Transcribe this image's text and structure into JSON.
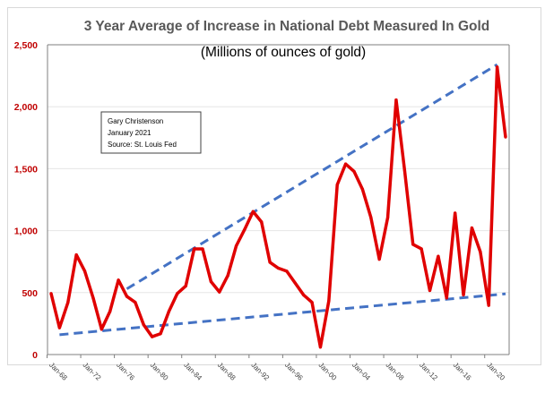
{
  "chart_data": {
    "type": "line",
    "title": "3 Year Average of Increase in National Debt Measured In Gold",
    "subtitle": "(Millions of ounces of gold)",
    "annotation": [
      "Gary Christenson",
      "January 2021",
      "Source: St. Louis Fed"
    ],
    "xlabel": "",
    "ylabel": "",
    "ylim": [
      0,
      2500
    ],
    "yticks": [
      0,
      500,
      1000,
      1500,
      2000,
      2500
    ],
    "ytick_labels": [
      "0",
      "500",
      "1,000",
      "1,500",
      "2,000",
      "2,500"
    ],
    "xtick_labels": [
      "Jan-68",
      "Jan-72",
      "Jan-76",
      "Jan-80",
      "Jan-84",
      "Jan-88",
      "Jan-92",
      "Jan-96",
      "Jan-00",
      "Jan-04",
      "Jan-08",
      "Jan-12",
      "Jan-16",
      "Jan-20"
    ],
    "xtick_years": [
      1968,
      1972,
      1976,
      1980,
      1984,
      1988,
      1992,
      1996,
      2000,
      2004,
      2008,
      2012,
      2016,
      2020
    ],
    "xlim": [
      1968,
      2022
    ],
    "grid": true,
    "series": [
      {
        "name": "3 Year Average",
        "color": "#e00000",
        "x": [
          1968,
          1969,
          1970,
          1971,
          1972,
          1973,
          1974,
          1975,
          1976,
          1977,
          1978,
          1979,
          1980,
          1981,
          1982,
          1983,
          1984,
          1985,
          1986,
          1987,
          1988,
          1989,
          1990,
          1991,
          1992,
          1993,
          1994,
          1995,
          1996,
          1997,
          1998,
          1999,
          2000,
          2001,
          2002,
          2003,
          2004,
          2005,
          2006,
          2007,
          2008,
          2009,
          2010,
          2011,
          2012,
          2013,
          2014,
          2015,
          2016,
          2017,
          2018,
          2019,
          2020,
          2021,
          2022
        ],
        "values": [
          493,
          216,
          420,
          805,
          673,
          457,
          204,
          349,
          601,
          469,
          421,
          240,
          144,
          168,
          349,
          493,
          553,
          853,
          853,
          589,
          505,
          637,
          877,
          1010,
          1154,
          1070,
          745,
          697,
          673,
          577,
          481,
          421,
          60,
          433,
          1370,
          1538,
          1478,
          1334,
          1106,
          769,
          1106,
          2055,
          1490,
          889,
          853,
          517,
          793,
          457,
          1142,
          481,
          1022,
          829,
          397,
          2320,
          1755
        ]
      }
    ],
    "trendlines": [
      {
        "name": "upper-trend",
        "color": "#4472c4",
        "x": [
          1977,
          2021
        ],
        "values": [
          530,
          2340
        ]
      },
      {
        "name": "lower-trend",
        "color": "#4472c4",
        "x": [
          1969,
          2022
        ],
        "values": [
          160,
          490
        ]
      }
    ]
  }
}
